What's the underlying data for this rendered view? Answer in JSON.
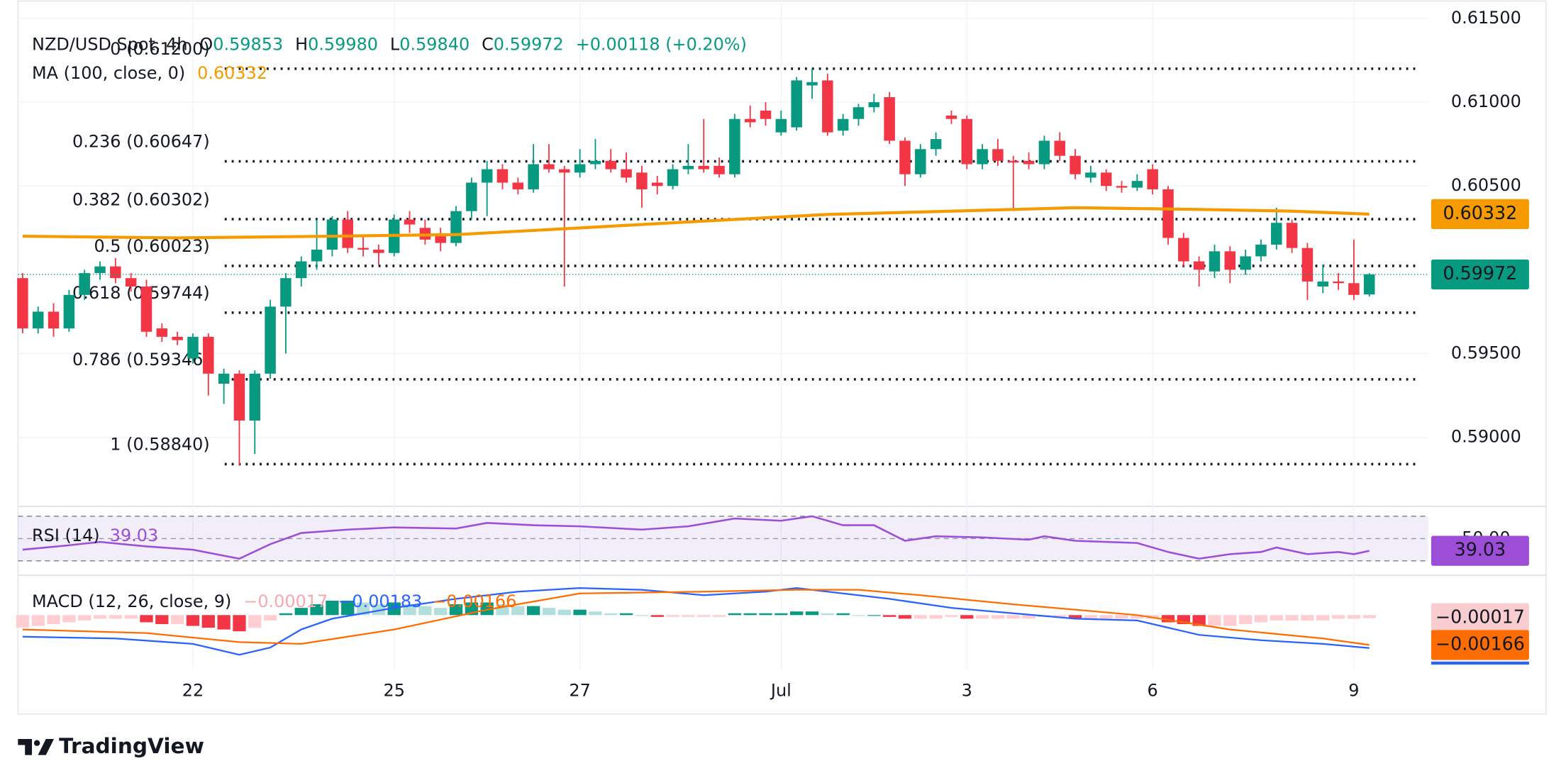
{
  "branding": "TradingView",
  "chart_data": [
    {
      "type": "candlestick",
      "title": "NZD/USD Spot, 4h",
      "legend": [
        {
          "label": "O",
          "value": "0.59853"
        },
        {
          "label": "H",
          "value": "0.59980"
        },
        {
          "label": "L",
          "value": "0.59840"
        },
        {
          "label": "C",
          "value": "0.59972"
        }
      ],
      "change": "+0.00118 (+0.20%)",
      "up_color": "#089981",
      "down_color": "#f23645",
      "grid": true,
      "categories": [
        null,
        null,
        null,
        null,
        null,
        null,
        null,
        null,
        null,
        null,
        null,
        "22",
        null,
        null,
        null,
        null,
        null,
        null,
        null,
        null,
        null,
        null,
        null,
        null,
        "25",
        null,
        null,
        null,
        null,
        null,
        null,
        null,
        null,
        null,
        null,
        null,
        "27",
        null,
        null,
        null,
        null,
        null,
        null,
        null,
        null,
        null,
        null,
        null,
        null,
        "Jul",
        null,
        null,
        null,
        null,
        null,
        null,
        null,
        null,
        null,
        null,
        null,
        "3",
        null,
        null,
        null,
        null,
        null,
        null,
        null,
        null,
        null,
        null,
        null,
        "6",
        null,
        null,
        null,
        null,
        null,
        null,
        null,
        null,
        null,
        null,
        null,
        null,
        "9",
        null
      ],
      "open": [
        0.5995,
        0.5965,
        0.5975,
        0.5965,
        0.5985,
        0.5998,
        0.6002,
        0.5995,
        0.599,
        0.5965,
        0.596,
        0.5947,
        0.596,
        0.5932,
        0.5938,
        0.591,
        0.5938,
        0.5978,
        0.5995,
        0.6005,
        0.6012,
        0.603,
        0.6013,
        0.6012,
        0.601,
        0.603,
        0.6025,
        0.602,
        0.6016,
        0.6035,
        0.6052,
        0.606,
        0.6052,
        0.6048,
        0.6063,
        0.606,
        0.6058,
        0.6063,
        0.6065,
        0.606,
        0.6058,
        0.6052,
        0.605,
        0.606,
        0.6062,
        0.6062,
        0.6057,
        0.609,
        0.6095,
        0.6082,
        0.6085,
        0.611,
        0.6113,
        0.6083,
        0.609,
        0.6097,
        0.6103,
        0.6077,
        0.6057,
        0.6072,
        0.6092,
        0.609,
        0.6063,
        0.6072,
        0.6065,
        0.6065,
        0.6063,
        0.6077,
        0.6068,
        0.6055,
        0.6058,
        0.605,
        0.6049,
        0.606,
        0.6048,
        0.6019,
        0.6005,
        0.5999,
        0.6011,
        0.6,
        0.6008,
        0.6015,
        0.6028,
        0.6013,
        0.599,
        0.5993,
        0.5992,
        0.59853
      ],
      "high": [
        0.5998,
        0.5978,
        0.598,
        0.5988,
        0.6,
        0.6005,
        0.6007,
        0.5998,
        0.5994,
        0.5968,
        0.5963,
        0.5962,
        0.5962,
        0.5941,
        0.594,
        0.594,
        0.5982,
        0.5998,
        0.6008,
        0.603,
        0.6032,
        0.6035,
        0.602,
        0.6015,
        0.6033,
        0.6035,
        0.603,
        0.6025,
        0.6038,
        0.6055,
        0.6065,
        0.6063,
        0.6055,
        0.6075,
        0.6075,
        0.6062,
        0.6072,
        0.6078,
        0.6072,
        0.607,
        0.6062,
        0.6056,
        0.6063,
        0.6075,
        0.609,
        0.6067,
        0.6093,
        0.6098,
        0.61,
        0.6095,
        0.6115,
        0.612,
        0.6117,
        0.6093,
        0.6099,
        0.6105,
        0.6106,
        0.6079,
        0.6075,
        0.6082,
        0.6095,
        0.6092,
        0.6075,
        0.6078,
        0.6068,
        0.607,
        0.608,
        0.6082,
        0.6072,
        0.6062,
        0.606,
        0.6053,
        0.6057,
        0.6063,
        0.605,
        0.6022,
        0.6008,
        0.6015,
        0.6014,
        0.6012,
        0.6018,
        0.6037,
        0.603,
        0.6016,
        0.6003,
        0.5998,
        0.6018,
        0.5998
      ],
      "low": [
        0.5962,
        0.5962,
        0.596,
        0.5963,
        0.5982,
        0.5994,
        0.5992,
        0.5987,
        0.596,
        0.5957,
        0.5955,
        0.5944,
        0.5925,
        0.592,
        0.5883,
        0.589,
        0.5935,
        0.595,
        0.599,
        0.6,
        0.6008,
        0.601,
        0.6008,
        0.6003,
        0.6008,
        0.6022,
        0.6015,
        0.6011,
        0.6014,
        0.603,
        0.6032,
        0.6048,
        0.6045,
        0.6046,
        0.6058,
        0.599,
        0.6055,
        0.606,
        0.6058,
        0.6052,
        0.6037,
        0.6045,
        0.6048,
        0.6057,
        0.6058,
        0.6055,
        0.6055,
        0.6085,
        0.6086,
        0.608,
        0.6083,
        0.6102,
        0.608,
        0.608,
        0.6086,
        0.6094,
        0.6075,
        0.605,
        0.6055,
        0.6068,
        0.6087,
        0.606,
        0.606,
        0.6062,
        0.6035,
        0.606,
        0.606,
        0.6065,
        0.6054,
        0.6052,
        0.6047,
        0.6046,
        0.6047,
        0.6045,
        0.6015,
        0.6002,
        0.599,
        0.5995,
        0.5992,
        0.5997,
        0.6005,
        0.6012,
        0.601,
        0.5982,
        0.5986,
        0.5988,
        0.5982,
        0.5984
      ],
      "close": [
        0.5965,
        0.5975,
        0.5965,
        0.5985,
        0.5998,
        0.6002,
        0.5995,
        0.599,
        0.5963,
        0.596,
        0.5958,
        0.596,
        0.5938,
        0.5938,
        0.591,
        0.5938,
        0.5978,
        0.5995,
        0.6005,
        0.6012,
        0.603,
        0.6013,
        0.6012,
        0.601,
        0.603,
        0.6027,
        0.6018,
        0.6016,
        0.6035,
        0.6052,
        0.606,
        0.6052,
        0.6048,
        0.6063,
        0.606,
        0.6058,
        0.6063,
        0.6065,
        0.606,
        0.6055,
        0.6048,
        0.605,
        0.606,
        0.6062,
        0.606,
        0.6057,
        0.609,
        0.6088,
        0.609,
        0.609,
        0.6113,
        0.6112,
        0.6082,
        0.609,
        0.6097,
        0.61,
        0.6077,
        0.6057,
        0.6072,
        0.6078,
        0.609,
        0.6063,
        0.6072,
        0.6065,
        0.6064,
        0.6063,
        0.6077,
        0.6068,
        0.6057,
        0.6058,
        0.605,
        0.6049,
        0.6053,
        0.6048,
        0.6019,
        0.6005,
        0.6,
        0.6011,
        0.6,
        0.6008,
        0.6015,
        0.6028,
        0.6013,
        0.5993,
        0.5993,
        0.5992,
        0.5985,
        0.59972
      ],
      "xlim": [
        -0.3,
        90.8
      ],
      "ylim": [
        0.586,
        0.6158
      ],
      "yticks": [
        {
          "value": 0.615,
          "label": "0.61500"
        },
        {
          "value": 0.61,
          "label": "0.61000"
        },
        {
          "value": 0.605,
          "label": "0.60500"
        },
        {
          "value": 0.595,
          "label": "0.59500"
        },
        {
          "value": 0.59,
          "label": "0.59000"
        }
      ],
      "last_color": "#089981",
      "ma": {
        "name": "MA (100, close, 0)",
        "value_label": "0.60332",
        "color": "#f59b00",
        "x": [
          0,
          10,
          20,
          28,
          36,
          44,
          52,
          60,
          68,
          76,
          82,
          87
        ],
        "values": [
          0.602,
          0.6019,
          0.602,
          0.6021,
          0.6025,
          0.6029,
          0.6033,
          0.6035,
          0.6037,
          0.6036,
          0.6035,
          0.60332
        ]
      },
      "fib_color": "#131722",
      "fib_levels": [
        {
          "label": "0 (0.61200)",
          "value": 0.612
        },
        {
          "label": "0.236 (0.60647)",
          "value": 0.60647
        },
        {
          "label": "0.382 (0.60302)",
          "value": 0.60302
        },
        {
          "label": "0.5 (0.60023)",
          "value": 0.60023
        },
        {
          "label": "0.618 (0.59744)",
          "value": 0.59744
        },
        {
          "label": "0.786 (0.59346)",
          "value": 0.59346
        },
        {
          "label": "1 (0.58840)",
          "value": 0.5884
        }
      ]
    },
    {
      "type": "line",
      "name": "RSI (14)",
      "value_label": "39.03",
      "color": "#9c4fd6",
      "x": [
        0,
        3,
        5,
        8,
        11,
        14,
        16,
        18,
        21,
        24,
        28,
        30,
        33,
        36,
        40,
        43,
        46,
        49,
        51,
        53,
        55,
        57,
        59,
        62,
        65,
        66,
        68,
        72,
        74,
        76,
        78,
        80,
        81,
        83,
        85,
        86,
        87
      ],
      "values": [
        40,
        44,
        47,
        43,
        40,
        32,
        45,
        55,
        58,
        60,
        59,
        64,
        62,
        61,
        58,
        61,
        68,
        66,
        70,
        62,
        62,
        48,
        52,
        51,
        49,
        52,
        48,
        46,
        38,
        32,
        36,
        38,
        42,
        36,
        38,
        36,
        39.03
      ],
      "ylim": [
        18,
        78
      ],
      "band": [
        30,
        70
      ],
      "yticks": [
        {
          "value": 50,
          "label": "50.00"
        }
      ]
    },
    {
      "type": "macd",
      "name": "MACD (12, 26, close, 9)",
      "hist_label": "−0.00017",
      "macd_label": "−0.00183",
      "signal_label": "−0.00166",
      "hist_colors": [
        "#089981",
        "#b2dfdb",
        "#ffcdd2",
        "#f23645"
      ],
      "histogram": [
        -0.0007,
        -0.0006,
        -0.0005,
        -0.0004,
        -0.0003,
        -0.0002,
        -0.0002,
        -0.0002,
        -0.0004,
        -0.0005,
        -0.0005,
        -0.0006,
        -0.0007,
        -0.0008,
        -0.0009,
        -0.0007,
        -0.0003,
        0.0001,
        0.0004,
        0.0006,
        0.0008,
        0.0008,
        0.0007,
        0.0006,
        0.0007,
        0.0006,
        0.0005,
        0.0004,
        0.0006,
        0.0007,
        0.0007,
        0.0006,
        0.0005,
        0.0005,
        0.0004,
        0.0003,
        0.0003,
        0.0002,
        0.0001,
        0.0001,
        0,
        -0.0001,
        -0.0001,
        -0.0001,
        -0.0001,
        -0.0001,
        0.0001,
        0.0001,
        0.0001,
        0.0001,
        0.0002,
        0.0002,
        0.0001,
        0.0001,
        0,
        0,
        -0.0001,
        -0.0002,
        -0.0002,
        -0.0002,
        -0.0001,
        -0.0002,
        -0.0002,
        -0.0002,
        -0.0002,
        -0.0002,
        -0.0001,
        -0.0001,
        -0.0002,
        -0.0002,
        -0.0002,
        -0.0002,
        -0.0002,
        -0.0002,
        -0.0004,
        -0.0005,
        -0.0006,
        -0.0006,
        -0.0006,
        -0.0005,
        -0.0004,
        -0.0003,
        -0.0003,
        -0.0003,
        -0.0003,
        -0.0002,
        -0.0002,
        -0.00017
      ],
      "macd": {
        "color": "#2962ff",
        "x": [
          0,
          6,
          11,
          14,
          16,
          18,
          20,
          24,
          28,
          32,
          36,
          40,
          44,
          48,
          50,
          52,
          56,
          60,
          64,
          68,
          72,
          76,
          80,
          84,
          87
        ],
        "values": [
          -0.0012,
          -0.0013,
          -0.0016,
          -0.0022,
          -0.0018,
          -0.0008,
          -0.0002,
          0.0004,
          0.0009,
          0.0013,
          0.0015,
          0.0014,
          0.0011,
          0.0013,
          0.0015,
          0.0013,
          0.0009,
          0.0004,
          0.0001,
          -0.0002,
          -0.0003,
          -0.0011,
          -0.0014,
          -0.0016,
          -0.00183
        ]
      },
      "signal": {
        "color": "#ff6d00",
        "x": [
          0,
          8,
          14,
          18,
          24,
          30,
          36,
          44,
          50,
          54,
          58,
          64,
          72,
          78,
          84,
          87
        ],
        "values": [
          -0.0008,
          -0.001,
          -0.0015,
          -0.0016,
          -0.0008,
          0.0003,
          0.0012,
          0.0013,
          0.0014,
          0.0014,
          0.0011,
          0.0006,
          0,
          -0.0008,
          -0.0013,
          -0.00166
        ]
      },
      "ylim": [
        -0.003,
        0.0021
      ]
    }
  ]
}
